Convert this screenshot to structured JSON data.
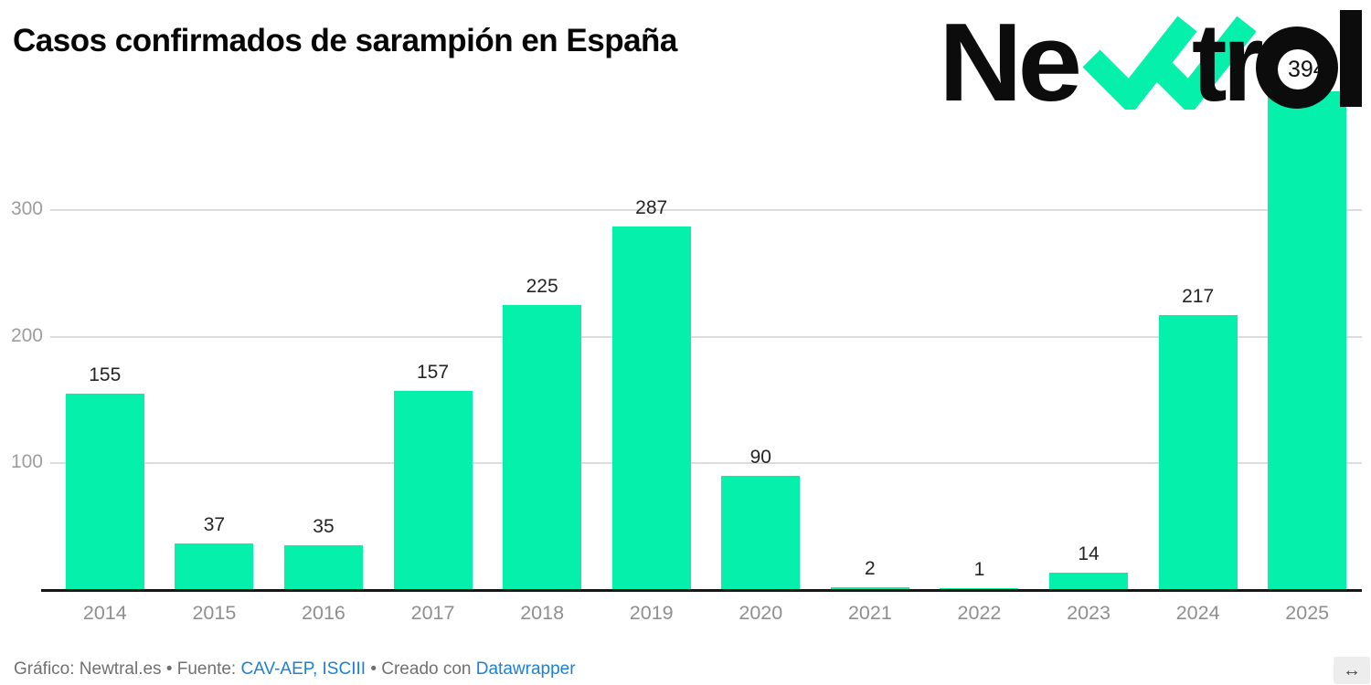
{
  "title": "Casos confirmados de sarampión en España",
  "logo": {
    "part1": "Ne",
    "part2": "tr",
    "hole_label": "394",
    "hole_label_visible_digits": "39",
    "black": "#0c0c0c",
    "green": "#05f0ab"
  },
  "chart_data": {
    "type": "bar",
    "title": "Casos confirmados de sarampión en España",
    "categories": [
      "2014",
      "2015",
      "2016",
      "2017",
      "2018",
      "2019",
      "2020",
      "2021",
      "2022",
      "2023",
      "2024",
      "2025"
    ],
    "values": [
      155,
      37,
      35,
      157,
      225,
      287,
      90,
      2,
      1,
      14,
      217,
      394
    ],
    "value_labels": [
      "155",
      "37",
      "35",
      "157",
      "225",
      "287",
      "90",
      "2",
      "1",
      "14",
      "217",
      "394"
    ],
    "note": "2025 data label is partially hidden behind the Newtral logo; visible digits are '39'. Value 394 estimated from bar height.",
    "xlabel": "",
    "ylabel": "",
    "yticks": [
      100,
      200,
      300
    ],
    "ylim": [
      0,
      394
    ],
    "grid": true,
    "legend": false,
    "bar_color": "#05f0ab",
    "gridline_color": "#dcdcdc",
    "axis_color": "#161616",
    "value_label_color": "#242424",
    "tick_label_color": "#9d9d9d"
  },
  "footer": {
    "text1": "Gráfico: Newtral.es • Fuente: ",
    "link1": "CAV-AEP, ISCIII",
    "text2": " • Creado con ",
    "link2": "Datawrapper"
  },
  "resize_icon": "↔"
}
